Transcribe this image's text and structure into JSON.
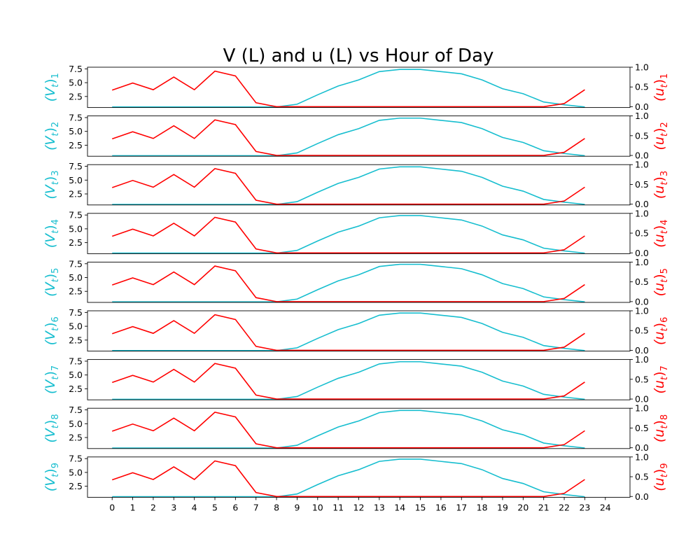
{
  "chart_data": {
    "type": "line",
    "title": "V (L) and u (L) vs Hour of Day",
    "x": [
      0,
      1,
      2,
      3,
      4,
      5,
      6,
      7,
      8,
      9,
      10,
      11,
      12,
      13,
      14,
      15,
      16,
      17,
      18,
      19,
      20,
      21,
      22,
      23
    ],
    "x_ticks": [
      0,
      1,
      2,
      3,
      4,
      5,
      6,
      7,
      8,
      9,
      10,
      11,
      12,
      13,
      14,
      15,
      16,
      17,
      18,
      19,
      20,
      21,
      22,
      23,
      24
    ],
    "grid": false,
    "left_axis": {
      "ylim": [
        0.5,
        7.8
      ],
      "ticks": [
        2.5,
        5.0,
        7.5
      ],
      "tick_labels": [
        "2.5",
        "5.0",
        "7.5"
      ],
      "color": "#17becf"
    },
    "right_axis": {
      "ylim": [
        -0.02,
        1.0
      ],
      "ticks": [
        0.0,
        0.5,
        1.0
      ],
      "tick_labels": [
        "0.0",
        "0.5",
        "1.0"
      ],
      "color": "#ff0000"
    },
    "subplots": [
      {
        "left_label": "(V_t)_1",
        "right_label": "(u_t)_1",
        "left_main": "(V",
        "left_t": "t",
        "left_close": ")",
        "left_idx": "1",
        "right_main": "(u",
        "right_t": "t",
        "right_close": ")",
        "right_idx": "1"
      },
      {
        "left_label": "(V_t)_2",
        "right_label": "(u_t)_2",
        "left_main": "(V",
        "left_t": "t",
        "left_close": ")",
        "left_idx": "2",
        "right_main": "(u",
        "right_t": "t",
        "right_close": ")",
        "right_idx": "2"
      },
      {
        "left_label": "(V_t)_3",
        "right_label": "(u_t)_3",
        "left_main": "(V",
        "left_t": "t",
        "left_close": ")",
        "left_idx": "3",
        "right_main": "(u",
        "right_t": "t",
        "right_close": ")",
        "right_idx": "3"
      },
      {
        "left_label": "(V_t)_4",
        "right_label": "(u_t)_4",
        "left_main": "(V",
        "left_t": "t",
        "left_close": ")",
        "left_idx": "4",
        "right_main": "(u",
        "right_t": "t",
        "right_close": ")",
        "right_idx": "4"
      },
      {
        "left_label": "(V_t)_5",
        "right_label": "(u_t)_5",
        "left_main": "(V",
        "left_t": "t",
        "left_close": ")",
        "left_idx": "5",
        "right_main": "(u",
        "right_t": "t",
        "right_close": ")",
        "right_idx": "5"
      },
      {
        "left_label": "(V_t)_6",
        "right_label": "(u_t)_6",
        "left_main": "(V",
        "left_t": "t",
        "left_close": ")",
        "left_idx": "6",
        "right_main": "(u",
        "right_t": "t",
        "right_close": ")",
        "right_idx": "6"
      },
      {
        "left_label": "(V_t)_7",
        "right_label": "(u_t)_7",
        "left_main": "(V",
        "left_t": "t",
        "left_close": ")",
        "left_idx": "7",
        "right_main": "(u",
        "right_t": "t",
        "right_close": ")",
        "right_idx": "7"
      },
      {
        "left_label": "(V_t)_8",
        "right_label": "(u_t)_8",
        "left_main": "(V",
        "left_t": "t",
        "left_close": ")",
        "left_idx": "8",
        "right_main": "(u",
        "right_t": "t",
        "right_close": ")",
        "right_idx": "8"
      },
      {
        "left_label": "(V_t)_9",
        "right_label": "(u_t)_9",
        "left_main": "(V",
        "left_t": "t",
        "left_close": ")",
        "left_idx": "9",
        "right_main": "(u",
        "right_t": "t",
        "right_close": ")",
        "right_idx": "9"
      }
    ],
    "series": [
      {
        "axis": "left",
        "color": "#17becf",
        "values": [
          0.6,
          0.6,
          0.6,
          0.6,
          0.6,
          0.6,
          0.6,
          0.6,
          0.6,
          1.1,
          2.8,
          4.4,
          5.5,
          7.0,
          7.4,
          7.4,
          7.0,
          6.6,
          5.5,
          3.9,
          3.0,
          1.5,
          1.0,
          0.6
        ]
      },
      {
        "axis": "right",
        "color": "#ff0000",
        "values": [
          0.42,
          0.6,
          0.43,
          0.75,
          0.43,
          0.9,
          0.78,
          0.1,
          0.0,
          0.0,
          0.0,
          0.0,
          0.0,
          0.0,
          0.0,
          0.0,
          0.0,
          0.0,
          0.0,
          0.0,
          0.0,
          0.0,
          0.08,
          0.43
        ]
      }
    ]
  }
}
